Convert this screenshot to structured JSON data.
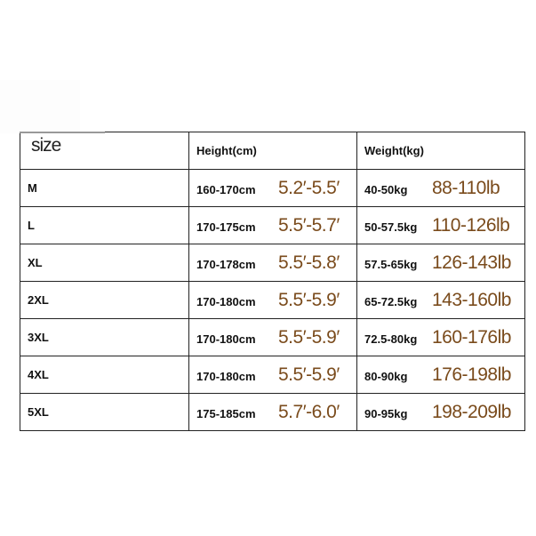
{
  "headers": {
    "size": "size",
    "height": "Height(cm)",
    "weight": "Weight(kg)"
  },
  "accent_color": "#7a4b1c",
  "rows": [
    {
      "size": "M",
      "height_cm": "160-170cm",
      "height_ft": "5.2′-5.5′",
      "weight_kg": "40-50kg",
      "weight_lb": "88-110lb"
    },
    {
      "size": "L",
      "height_cm": "170-175cm",
      "height_ft": "5.5′-5.7′",
      "weight_kg": "50-57.5kg",
      "weight_lb": "110-126lb"
    },
    {
      "size": "XL",
      "height_cm": "170-178cm",
      "height_ft": "5.5′-5.8′",
      "weight_kg": "57.5-65kg",
      "weight_lb": "126-143lb"
    },
    {
      "size": "2XL",
      "height_cm": "170-180cm",
      "height_ft": "5.5′-5.9′",
      "weight_kg": "65-72.5kg",
      "weight_lb": "143-160lb"
    },
    {
      "size": "3XL",
      "height_cm": "170-180cm",
      "height_ft": "5.5′-5.9′",
      "weight_kg": "72.5-80kg",
      "weight_lb": "160-176lb"
    },
    {
      "size": "4XL",
      "height_cm": "170-180cm",
      "height_ft": "5.5′-5.9′",
      "weight_kg": "80-90kg",
      "weight_lb": "176-198lb"
    },
    {
      "size": "5XL",
      "height_cm": "175-185cm",
      "height_ft": "5.7′-6.0′",
      "weight_kg": "90-95kg",
      "weight_lb": "198-209lb"
    }
  ]
}
